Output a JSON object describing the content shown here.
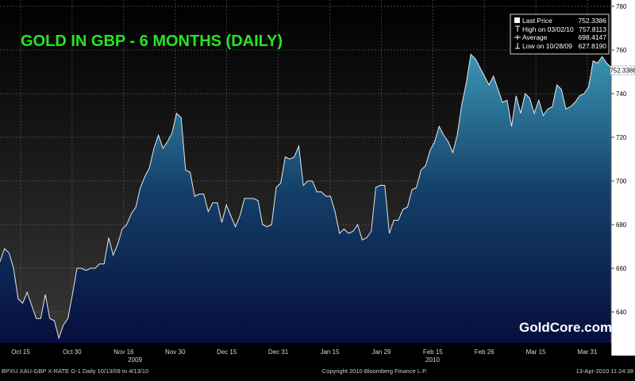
{
  "chart_data": {
    "type": "area",
    "title": "GOLD IN GBP - 6 MONTHS (DAILY)",
    "xlabel": "",
    "ylabel": "",
    "ylim": [
      620,
      780
    ],
    "grid": true,
    "legend_position": "top-right",
    "y_ticks": [
      "640",
      "660",
      "680",
      "700",
      "720",
      "740",
      "760",
      "780"
    ],
    "x_ticks": [
      "Oct 15",
      "Oct 30",
      "Nov 16",
      "Nov 30",
      "Dec 15",
      "Dec 31",
      "Jan 15",
      "Jan 29",
      "Feb 15",
      "Feb 26",
      "Mar 15",
      "Mar 31"
    ],
    "year_labels": [
      "2009",
      "2010"
    ],
    "last_value_tag": "752.3386",
    "series": [
      {
        "values": [
          663,
          669,
          667,
          660,
          646,
          644,
          649,
          643,
          637,
          637,
          648,
          637,
          636,
          628,
          634,
          637,
          648,
          660,
          660,
          659,
          660,
          660,
          662,
          662,
          674,
          666,
          671,
          678,
          680,
          685,
          688,
          697,
          702,
          706,
          715,
          721,
          715,
          718,
          722,
          731,
          729,
          705,
          704,
          693,
          694,
          694,
          686,
          690,
          690,
          681,
          689,
          684,
          679,
          684,
          692,
          692,
          692,
          691,
          680,
          679,
          680,
          697,
          699,
          711,
          710,
          711,
          716,
          698,
          700,
          700,
          695,
          695,
          693,
          693,
          686,
          676,
          678,
          676,
          677,
          680,
          673,
          674,
          677,
          697,
          698,
          698,
          676,
          682,
          682,
          687,
          688,
          696,
          697,
          705,
          707,
          714,
          718,
          725,
          721,
          718,
          713,
          721,
          735,
          745,
          758,
          756,
          752,
          748,
          744,
          748,
          742,
          736,
          737,
          725,
          739,
          731,
          740,
          738,
          731,
          737,
          730,
          733,
          734,
          744,
          742,
          733,
          734,
          736,
          739,
          740,
          743,
          755,
          754,
          757,
          754,
          752
        ]
      }
    ],
    "legend": [
      {
        "label": "Last Price",
        "value": "752.3386"
      },
      {
        "label": "High on 03/02/10",
        "value": "757.8113"
      },
      {
        "label": "Average",
        "value": "698.4147"
      },
      {
        "label": "Low on 10/28/09",
        "value": "627.8190"
      }
    ],
    "watermark": "GoldCore.com",
    "footer": {
      "left": "BPXU  XAU-GBP X-RATE    G-1   Daily  10/13/09 to 4/13/10",
      "center": "Copyright 2010 Bloomberg Finance L.P.",
      "right": "13-Apr-2010 11:24:38"
    }
  }
}
